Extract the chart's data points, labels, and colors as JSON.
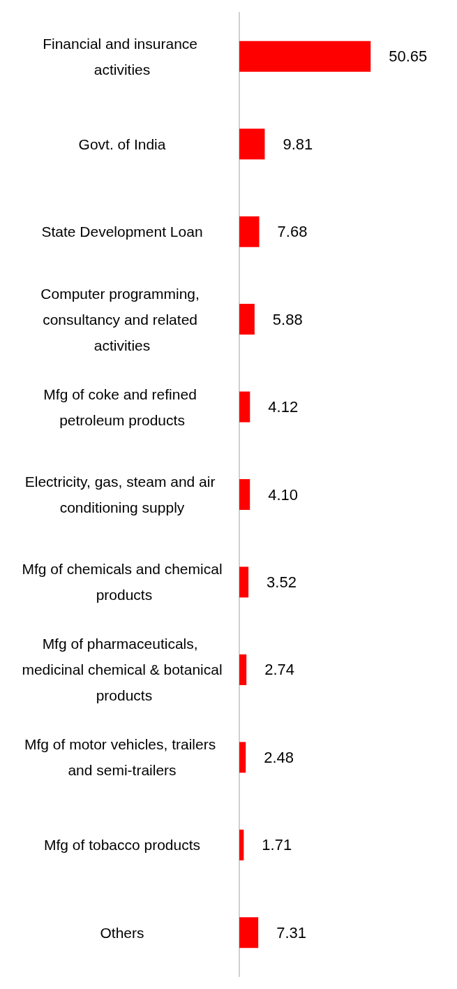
{
  "chart_data": {
    "type": "bar",
    "orientation": "horizontal",
    "categories": [
      "Financial and insurance activities",
      "Govt. of India",
      "State Development Loan",
      "Computer programming, consultancy and related activities",
      "Mfg of coke and refined petroleum products",
      "Electricity, gas, steam and air conditioning supply",
      "Mfg of chemicals and chemical products",
      "Mfg of pharmaceuticals, medicinal chemical & botanical products",
      "Mfg of motor vehicles, trailers and semi-trailers",
      "Mfg of tobacco products",
      "Others"
    ],
    "values": [
      50.65,
      9.81,
      7.68,
      5.88,
      4.12,
      4.1,
      3.52,
      2.74,
      2.48,
      1.71,
      7.31
    ],
    "value_labels": [
      "50.65",
      "9.81",
      "7.68",
      "5.88",
      "4.12",
      "4.10",
      "3.52",
      "2.74",
      "2.48",
      "1.71",
      "7.31"
    ],
    "color": "#ff0000",
    "tick_labels": "y"
  }
}
